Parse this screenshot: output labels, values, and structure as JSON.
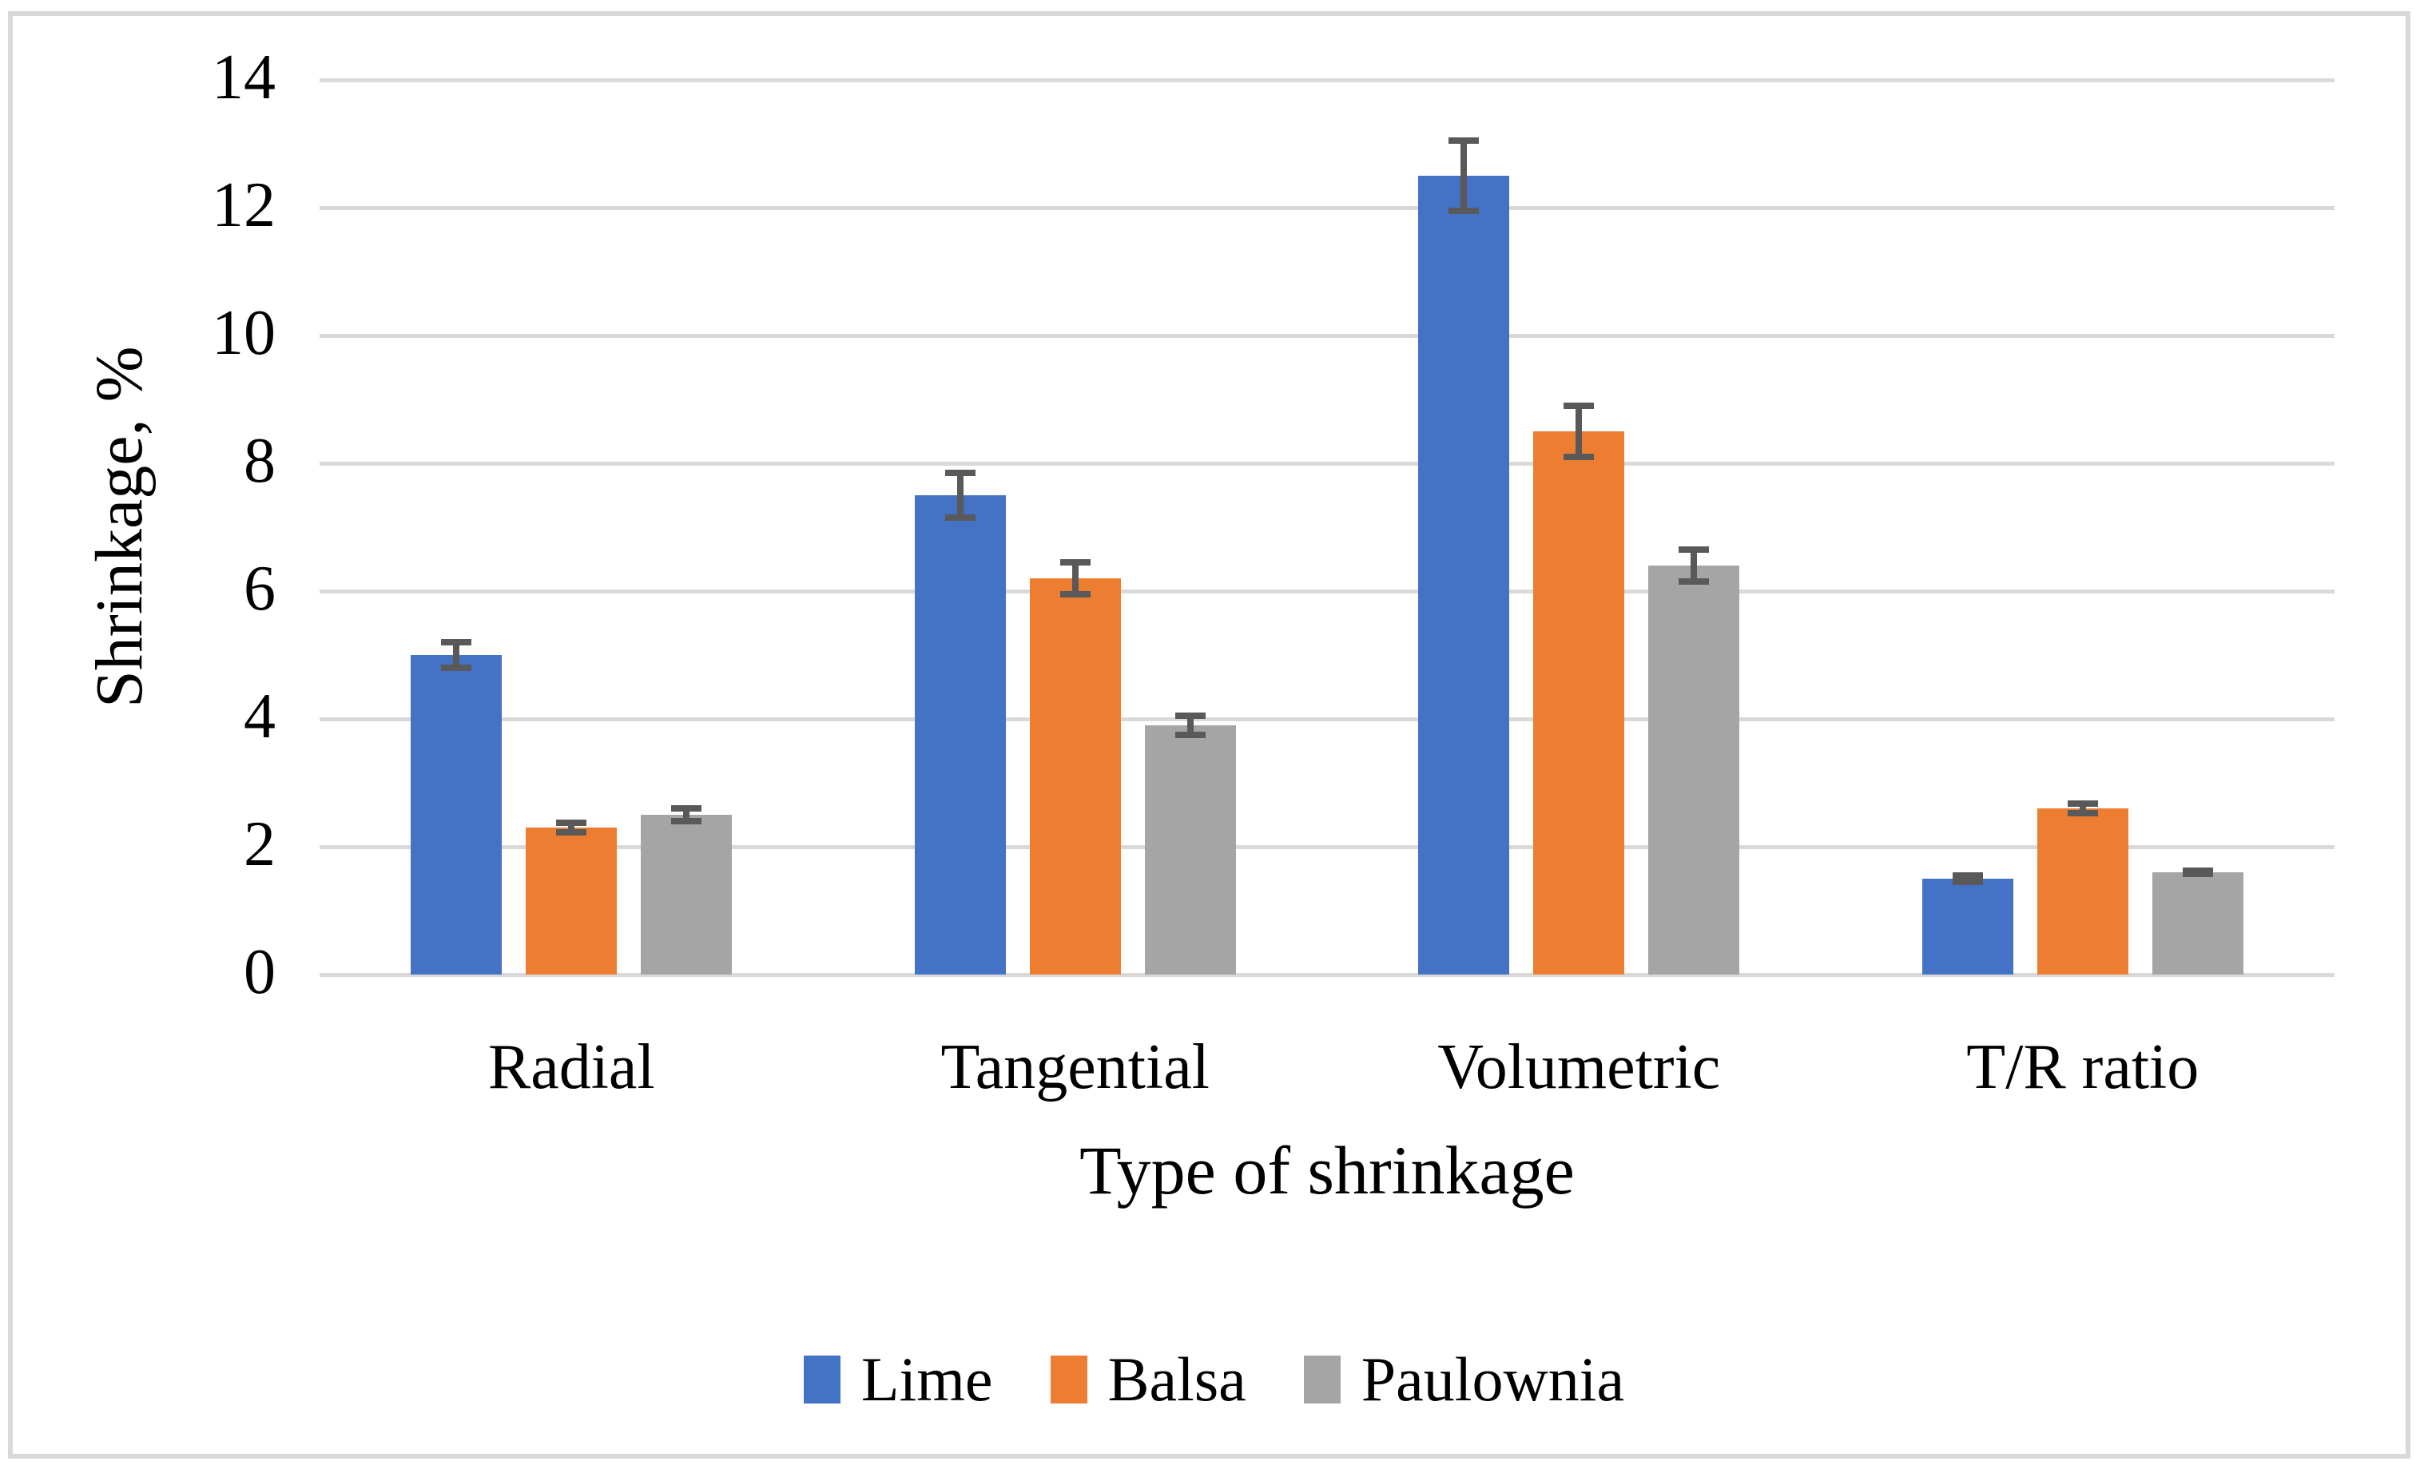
{
  "figure": {
    "background_color": "#FFFFFF",
    "border_color": "#D9D9D9"
  },
  "chart_data": {
    "type": "bar",
    "title": "",
    "xlabel": "Type of shrinkage",
    "ylabel": "Shrinkage, %",
    "categories": [
      "Radial",
      "Tangential",
      "Volumetric",
      "T/R ratio"
    ],
    "series": [
      {
        "name": "Lime",
        "color": "#4472C4",
        "values": [
          5.0,
          7.5,
          12.5,
          1.5
        ],
        "errors": [
          0.25,
          0.4,
          0.6,
          0.1
        ]
      },
      {
        "name": "Balsa",
        "color": "#ED7D31",
        "values": [
          2.3,
          6.2,
          8.5,
          2.6
        ],
        "errors": [
          0.12,
          0.3,
          0.45,
          0.13
        ]
      },
      {
        "name": "Paulownia",
        "color": "#A5A5A5",
        "values": [
          2.5,
          3.9,
          6.4,
          1.6
        ],
        "errors": [
          0.15,
          0.2,
          0.3,
          0.08
        ]
      }
    ],
    "ylim": [
      0,
      14
    ],
    "yticks": [
      0,
      2,
      4,
      6,
      8,
      10,
      12,
      14
    ],
    "grid": true,
    "gridline_color": "#D9D9D9",
    "error_bar_color": "#595959",
    "legend_position": "bottom",
    "error_bars": true
  }
}
